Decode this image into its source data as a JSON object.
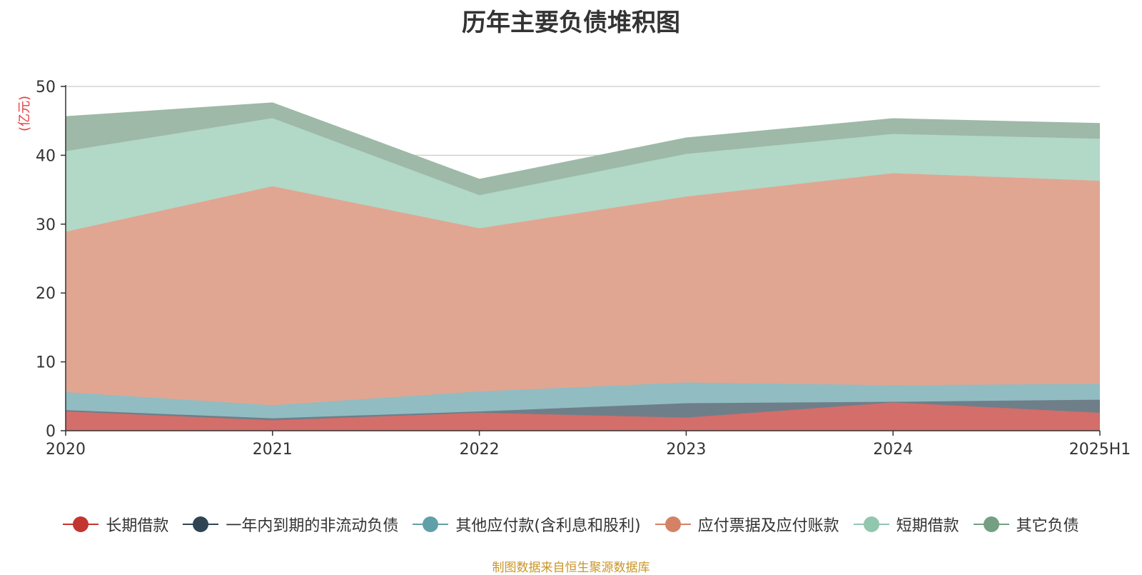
{
  "title": "历年主要负债堆积图",
  "unit_label": "(亿元)",
  "source_note": "制图数据来自恒生聚源数据库",
  "colors": {
    "unit_label": "#e83b3b",
    "source_note": "#c9962a",
    "axis": "#333333",
    "grid": "#cccccc"
  },
  "chart_data": {
    "type": "area",
    "stacked": true,
    "categories": [
      "2020",
      "2021",
      "2022",
      "2023",
      "2024",
      "2025H1"
    ],
    "ylim": [
      0,
      50
    ],
    "yticks": [
      "0",
      "10",
      "20",
      "30",
      "40",
      "50"
    ],
    "grid": true,
    "legend_position": "bottom",
    "series": [
      {
        "name": "长期借款",
        "color": "#c23531",
        "fill": "#d46e6a",
        "values": [
          2.8,
          1.5,
          2.6,
          1.9,
          4.1,
          2.6
        ]
      },
      {
        "name": "一年内到期的非流动负债",
        "color": "#2f4554",
        "fill": "#6e7f89",
        "values": [
          0.2,
          0.3,
          0.2,
          2.1,
          0.1,
          1.9
        ]
      },
      {
        "name": "其他应付款(含利息和股利)",
        "color": "#61a0a8",
        "fill": "#91bcc2",
        "values": [
          2.6,
          1.9,
          2.9,
          3.0,
          2.4,
          2.3
        ]
      },
      {
        "name": "应付票据及应付账款",
        "color": "#d48265",
        "fill": "#e0a692",
        "values": [
          23.3,
          31.8,
          23.7,
          27.0,
          30.8,
          29.5
        ]
      },
      {
        "name": "短期借款",
        "color": "#91c7ae",
        "fill": "#b2d8c7",
        "values": [
          11.7,
          9.9,
          4.8,
          6.2,
          5.7,
          6.1
        ]
      },
      {
        "name": "其它负债",
        "color": "#749f83",
        "fill": "#9eb9a7",
        "values": [
          5.0,
          2.2,
          2.3,
          2.3,
          2.2,
          2.2
        ]
      }
    ]
  }
}
